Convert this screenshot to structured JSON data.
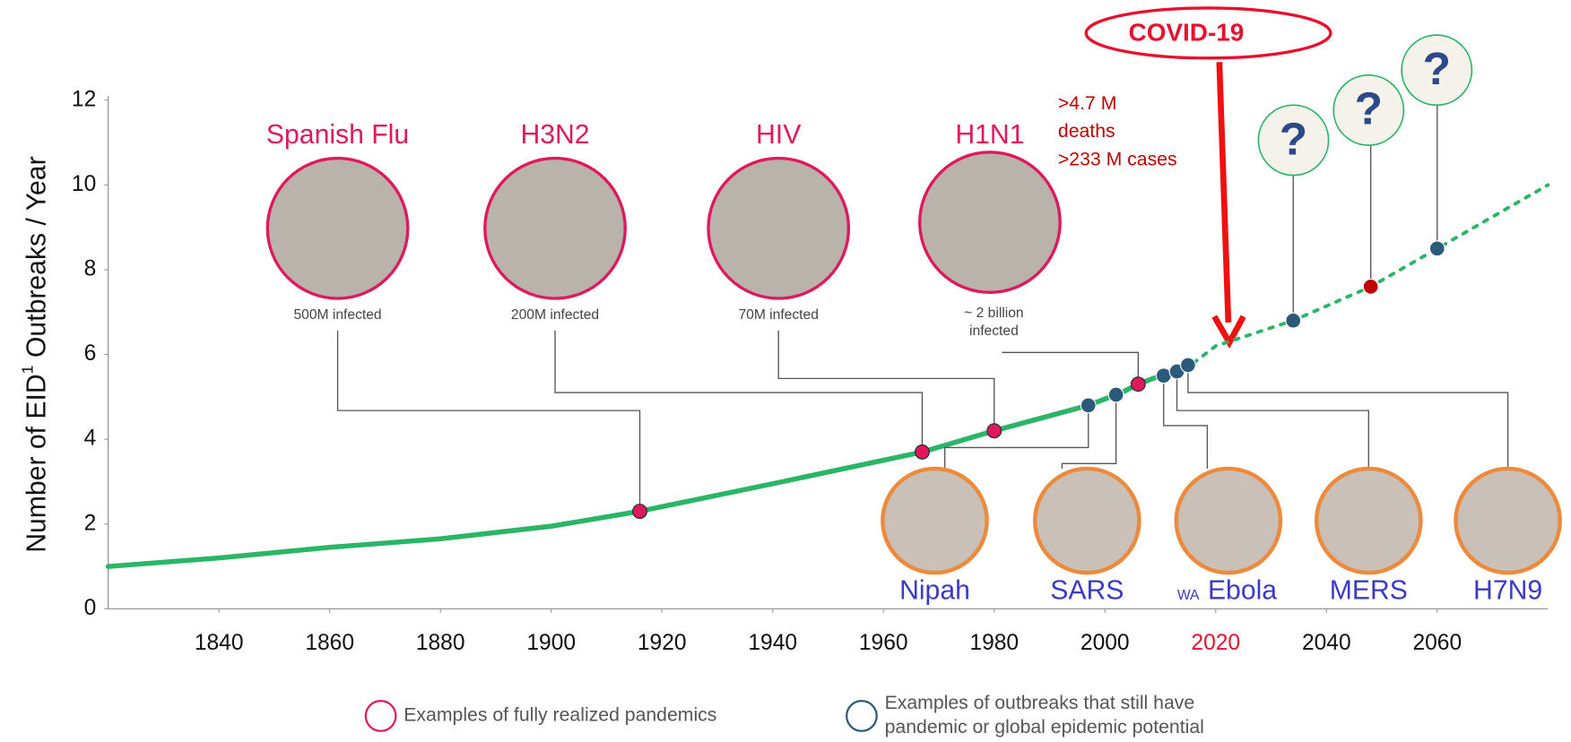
{
  "chart_data": {
    "type": "line",
    "y_label": [
      "Number of EID",
      "1",
      " Outbreaks / Year"
    ],
    "x": [
      1820,
      1840,
      1860,
      1880,
      1900,
      1916,
      1940,
      1967,
      1980,
      1997,
      2003,
      2006,
      2010,
      2013,
      2016,
      2020,
      2034,
      2048,
      2060,
      2080
    ],
    "series": [
      {
        "color": "#2bb566",
        "style": "solid",
        "values": [
          1.0,
          1.2,
          1.45,
          1.65,
          1.95,
          2.3,
          2.95,
          3.7,
          4.2,
          4.8,
          5.1,
          5.3,
          5.5,
          5.6,
          5.8,
          null,
          null,
          null,
          null,
          null
        ]
      },
      {
        "color": "#2bb566",
        "style": "dotted",
        "values": [
          null,
          null,
          null,
          null,
          null,
          null,
          null,
          null,
          null,
          null,
          null,
          null,
          null,
          null,
          5.8,
          6.2,
          6.8,
          7.6,
          8.5,
          10.0
        ]
      }
    ],
    "xlim": [
      1820,
      2080
    ],
    "ylim": [
      0,
      12
    ],
    "xticks": [
      1840,
      1860,
      1880,
      1900,
      1920,
      1940,
      1960,
      1980,
      2000,
      2020,
      2040,
      2060
    ],
    "yticks": [
      0,
      2,
      4,
      6,
      8,
      10,
      12
    ],
    "highlight_xtick": 2020,
    "highlight_color": "#e8112d",
    "grid": false,
    "pandemics": [
      {
        "label": "Spanish Flu",
        "note": [
          "500M infected"
        ],
        "x": 1916,
        "y": 2.3
      },
      {
        "label": "H3N2",
        "note": [
          "200M infected"
        ],
        "x": 1967,
        "y": 3.7
      },
      {
        "label": "HIV",
        "note": [
          "70M infected"
        ],
        "x": 1980,
        "y": 4.2
      },
      {
        "label": "H1N1",
        "note": [
          "~ 2 billion",
          "infected"
        ],
        "x": 2006,
        "y": 5.3
      }
    ],
    "outbreaks": [
      {
        "label": "Nipah",
        "x": 1997,
        "y": 4.8
      },
      {
        "label": "SARS",
        "x": 2002,
        "y": 5.05
      },
      {
        "prefix": "WA",
        "label": "Ebola",
        "x": 2010.6,
        "y": 5.5
      },
      {
        "label": "MERS",
        "x": 2013,
        "y": 5.6
      },
      {
        "label": "H7N9",
        "x": 2015,
        "y": 5.75
      }
    ],
    "future": [
      {
        "x": 2034,
        "y": 6.8,
        "color": "#2c5a7a"
      },
      {
        "x": 2048,
        "y": 7.6,
        "color": "#c00000"
      },
      {
        "x": 2060,
        "y": 8.5,
        "color": "#2c5a7a"
      }
    ],
    "future_label": "?",
    "covid_label": "COVID-19",
    "covid_note": [
      ">4.7 M",
      "deaths",
      ">233 M cases"
    ],
    "pandemic_color": "#e0185c",
    "outbreak_color": "#2c5a7a",
    "legend": [
      {
        "label": [
          "Examples of fully realized pandemics"
        ],
        "color": "#e0185c"
      },
      {
        "label": [
          "Examples of outbreaks that still have",
          "pandemic or global epidemic potential"
        ],
        "color": "#2c5a7a"
      }
    ]
  }
}
